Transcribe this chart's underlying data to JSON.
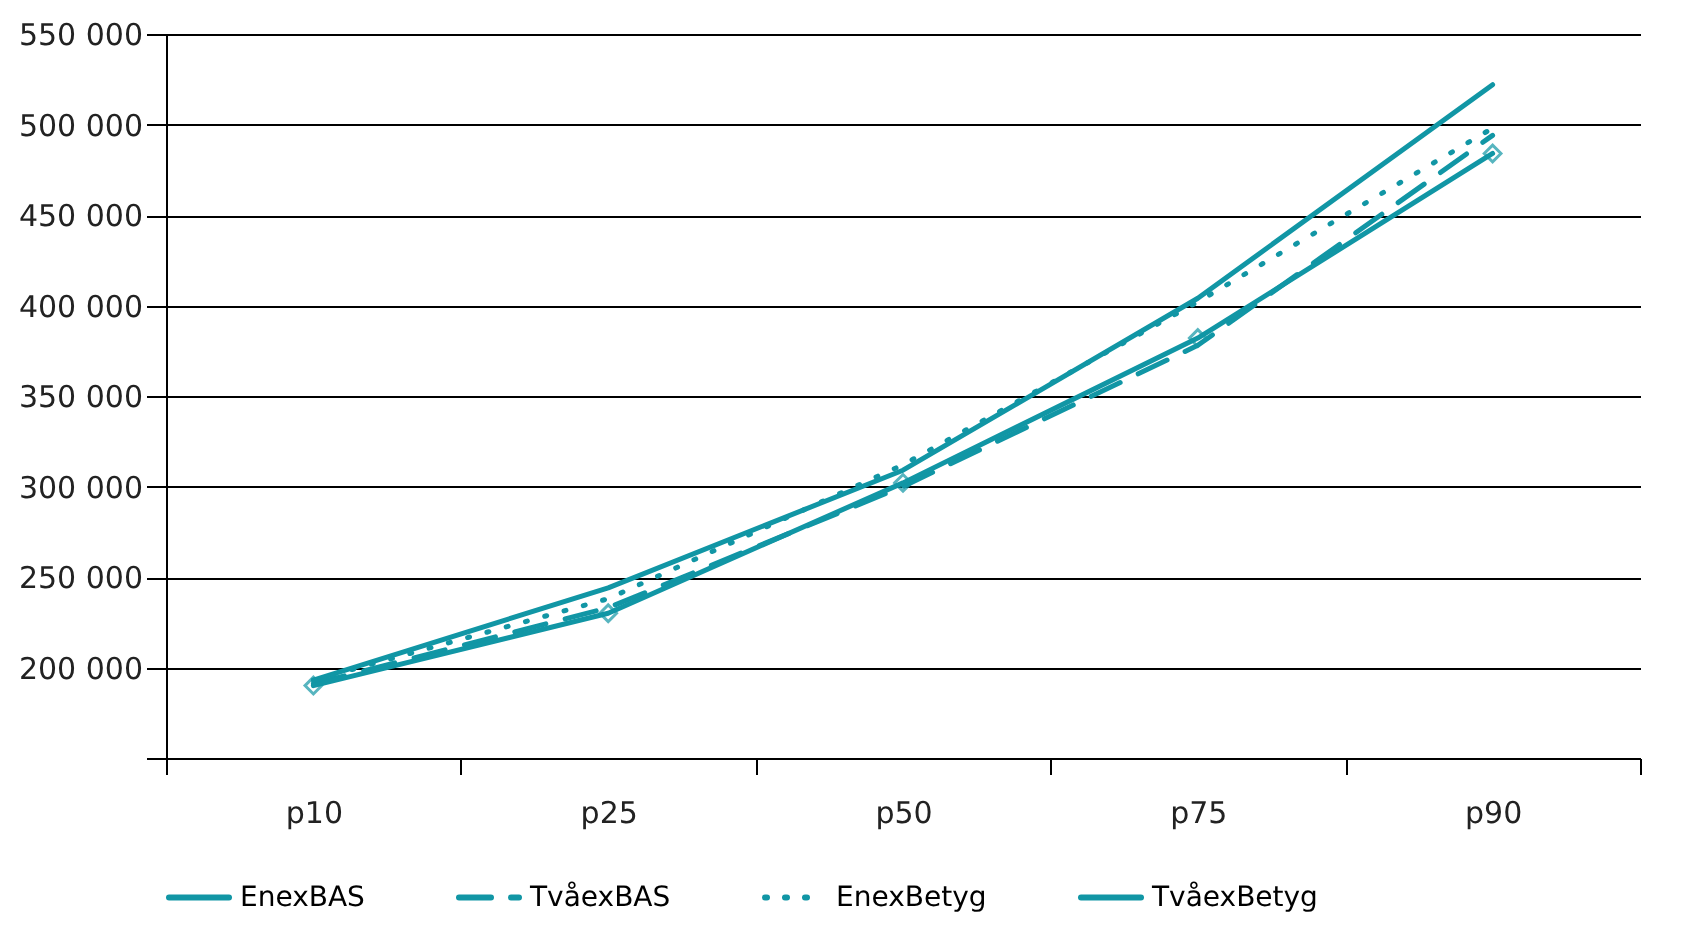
{
  "chart_data": {
    "type": "line",
    "categories": [
      "p10",
      "p25",
      "p50",
      "p75",
      "p90"
    ],
    "series": [
      {
        "name": "EnexBAS",
        "color": "#1196a5",
        "line_style": "solid",
        "values": [
          193000,
          244000,
          309000,
          404000,
          522000
        ]
      },
      {
        "name": "TvåexBAS",
        "color": "#1196a5",
        "line_style": "dashed",
        "values": [
          191000,
          233000,
          300000,
          378000,
          494000
        ]
      },
      {
        "name": "EnexBetyg",
        "color": "#1196a5",
        "line_style": "dotted",
        "values": [
          193000,
          238000,
          312000,
          402000,
          498000
        ]
      },
      {
        "name": "TvåexBetyg",
        "color": "#1196a5",
        "line_style": "solid",
        "marker": "diamond",
        "values": [
          190000,
          230000,
          302000,
          382000,
          484000
        ]
      }
    ],
    "ylim": [
      150000,
      550000
    ],
    "yticks": [
      {
        "value": 150000,
        "label": null
      },
      {
        "value": 200000,
        "label": "200 000"
      },
      {
        "value": 250000,
        "label": "250 000"
      },
      {
        "value": 300000,
        "label": "300 000"
      },
      {
        "value": 350000,
        "label": "350 000"
      },
      {
        "value": 400000,
        "label": "400 000"
      },
      {
        "value": 450000,
        "label": "450 000"
      },
      {
        "value": 500000,
        "label": "500 000"
      },
      {
        "value": 550000,
        "label": "550 000"
      }
    ],
    "grid": "y",
    "legend": "bottom"
  }
}
